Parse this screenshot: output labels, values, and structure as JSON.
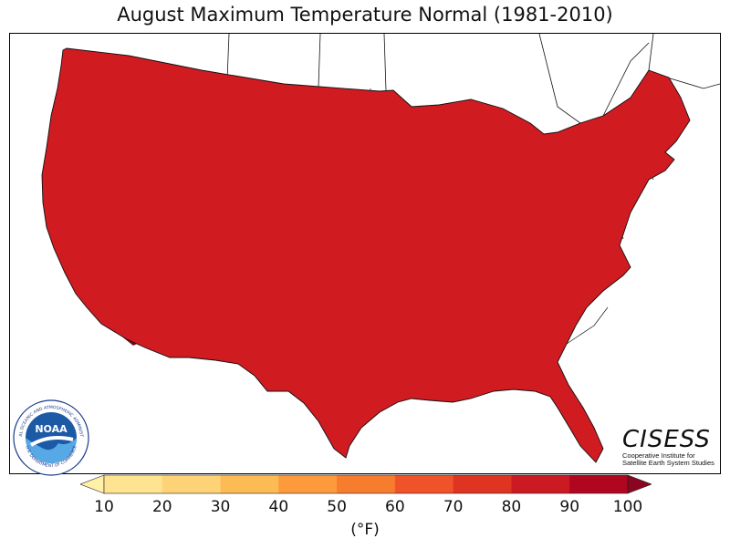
{
  "title": "August Maximum Temperature Normal (1981-2010)",
  "units": "(°F)",
  "logos": {
    "noaa": "NOAA",
    "noaa_ring_top": "NATIONAL OCEANIC AND ATMOSPHERIC ADMINISTRATION",
    "noaa_ring_bottom": "U.S. DEPARTMENT OF COMMERCE",
    "cisess": "CISESS",
    "cisess_line1": "Cooperative Institute for",
    "cisess_line2": "Satellite Earth System Studies"
  },
  "colorbar": {
    "ticks": [
      "10",
      "20",
      "30",
      "40",
      "50",
      "60",
      "70",
      "80",
      "90",
      "100"
    ],
    "bins": [
      {
        "from": 0,
        "to": 10,
        "color": "#fff1a8"
      },
      {
        "from": 10,
        "to": 20,
        "color": "#fee391"
      },
      {
        "from": 20,
        "to": 30,
        "color": "#fed377"
      },
      {
        "from": 30,
        "to": 40,
        "color": "#fdbb55"
      },
      {
        "from": 40,
        "to": 50,
        "color": "#fd9a3c"
      },
      {
        "from": 50,
        "to": 60,
        "color": "#f87c2e"
      },
      {
        "from": 60,
        "to": 70,
        "color": "#f0522a"
      },
      {
        "from": 70,
        "to": 80,
        "color": "#e03423"
      },
      {
        "from": 80,
        "to": 90,
        "color": "#cc1a22"
      },
      {
        "from": 90,
        "to": 100,
        "color": "#b0061f"
      },
      {
        "from": 100,
        "to": 110,
        "color": "#8c0520"
      }
    ]
  },
  "colors": {
    "hot_south": "#b3061e",
    "warm_plains": "#d01b21",
    "north": "#e0311f",
    "mountains": "#f26a2e",
    "high_peaks": "#f8a03e",
    "desert_core": "#7a0a1a",
    "lakes": "#ffffff"
  }
}
